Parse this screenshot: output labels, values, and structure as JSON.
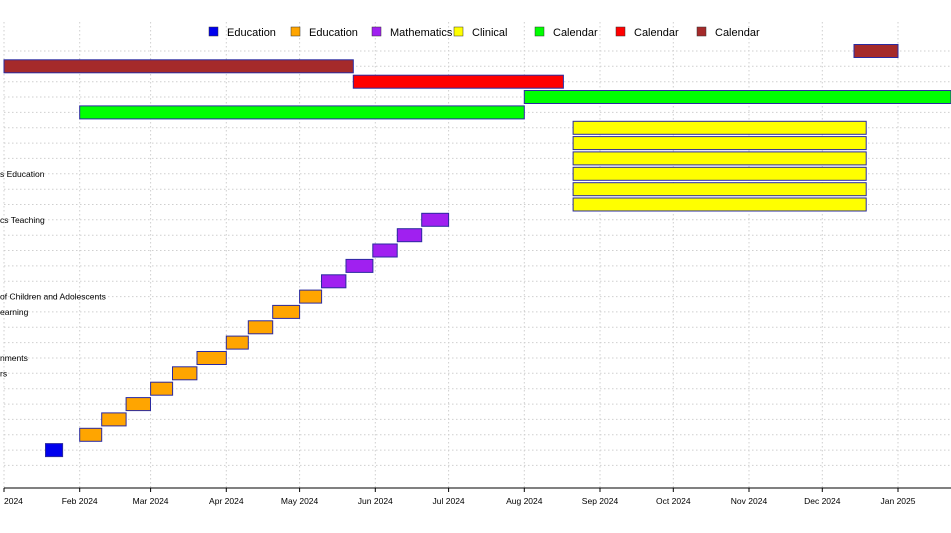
{
  "chart_data": {
    "type": "gantt",
    "title": "",
    "xlabel": "",
    "ylabel": "",
    "x_axis": {
      "type": "date",
      "range": [
        "2023-12-31",
        "2025-02-07"
      ],
      "tick_labels": [
        {
          "date": "2024-01-01",
          "label": "2024"
        },
        {
          "date": "2024-02-01",
          "label": "Feb 2024"
        },
        {
          "date": "2024-03-01",
          "label": "Mar 2024"
        },
        {
          "date": "2024-04-01",
          "label": "Apr 2024"
        },
        {
          "date": "2024-05-01",
          "label": "May 2024"
        },
        {
          "date": "2024-06-01",
          "label": "Jun 2024"
        },
        {
          "date": "2024-07-01",
          "label": "Jul 2024"
        },
        {
          "date": "2024-08-01",
          "label": "Aug 2024"
        },
        {
          "date": "2024-09-01",
          "label": "Sep 2024"
        },
        {
          "date": "2024-10-01",
          "label": "Oct 2024"
        },
        {
          "date": "2024-11-01",
          "label": "Nov 2024"
        },
        {
          "date": "2024-12-01",
          "label": "Dec 2024"
        },
        {
          "date": "2025-01-01",
          "label": "Jan 2025"
        }
      ]
    },
    "grid": true,
    "legend_position": "top",
    "legend": [
      {
        "label": "Education",
        "color": "#0000ee"
      },
      {
        "label": "Education",
        "color": "#ffa500"
      },
      {
        "label": "Mathematics",
        "color": "#a020f0"
      },
      {
        "label": "Clinical",
        "color": "#ffff00"
      },
      {
        "label": "Calendar",
        "color": "#00ff00"
      },
      {
        "label": "Calendar",
        "color": "#ff0000"
      },
      {
        "label": "Calendar",
        "color": "#a52a2a"
      }
    ],
    "tasks": [
      {
        "start": "2024-12-14",
        "end": "2025-01-01",
        "color": "#a52a2a",
        "label": ""
      },
      {
        "start": "2024-01-01",
        "end": "2024-05-23",
        "color": "#a52a2a",
        "label": ""
      },
      {
        "start": "2024-05-23",
        "end": "2024-08-17",
        "color": "#ff0000",
        "label": ""
      },
      {
        "start": "2024-08-01",
        "end": "2025-02-07",
        "color": "#00ff00",
        "label": ""
      },
      {
        "start": "2024-02-01",
        "end": "2024-08-01",
        "color": "#00ff00",
        "label": ""
      },
      {
        "start": "2024-08-21",
        "end": "2024-12-19",
        "color": "#ffff00",
        "label": ""
      },
      {
        "start": "2024-08-21",
        "end": "2024-12-19",
        "color": "#ffff00",
        "label": ""
      },
      {
        "start": "2024-08-21",
        "end": "2024-12-19",
        "color": "#ffff00",
        "label": ""
      },
      {
        "start": "2024-08-21",
        "end": "2024-12-19",
        "color": "#ffff00",
        "label": "s Education"
      },
      {
        "start": "2024-08-21",
        "end": "2024-12-19",
        "color": "#ffff00",
        "label": ""
      },
      {
        "start": "2024-08-21",
        "end": "2024-12-19",
        "color": "#ffff00",
        "label": ""
      },
      {
        "start": "2024-06-20",
        "end": "2024-07-01",
        "color": "#a020f0",
        "label": "cs Teaching"
      },
      {
        "start": "2024-06-10",
        "end": "2024-06-20",
        "color": "#a020f0",
        "label": ""
      },
      {
        "start": "2024-05-31",
        "end": "2024-06-10",
        "color": "#a020f0",
        "label": ""
      },
      {
        "start": "2024-05-20",
        "end": "2024-05-31",
        "color": "#a020f0",
        "label": ""
      },
      {
        "start": "2024-05-10",
        "end": "2024-05-20",
        "color": "#a020f0",
        "label": ""
      },
      {
        "start": "2024-05-01",
        "end": "2024-05-10",
        "color": "#ffa500",
        "label": "of Children and Adolescents"
      },
      {
        "start": "2024-04-20",
        "end": "2024-05-01",
        "color": "#ffa500",
        "label": "earning"
      },
      {
        "start": "2024-04-10",
        "end": "2024-04-20",
        "color": "#ffa500",
        "label": ""
      },
      {
        "start": "2024-04-01",
        "end": "2024-04-10",
        "color": "#ffa500",
        "label": ""
      },
      {
        "start": "2024-03-20",
        "end": "2024-04-01",
        "color": "#ffa500",
        "label": "nments"
      },
      {
        "start": "2024-03-10",
        "end": "2024-03-20",
        "color": "#ffa500",
        "label": "rs"
      },
      {
        "start": "2024-03-01",
        "end": "2024-03-10",
        "color": "#ffa500",
        "label": ""
      },
      {
        "start": "2024-02-20",
        "end": "2024-03-01",
        "color": "#ffa500",
        "label": ""
      },
      {
        "start": "2024-02-10",
        "end": "2024-02-20",
        "color": "#ffa500",
        "label": ""
      },
      {
        "start": "2024-02-01",
        "end": "2024-02-10",
        "color": "#ffa500",
        "label": ""
      },
      {
        "start": "2024-01-18",
        "end": "2024-01-25",
        "color": "#0000ee",
        "label": ""
      }
    ]
  }
}
